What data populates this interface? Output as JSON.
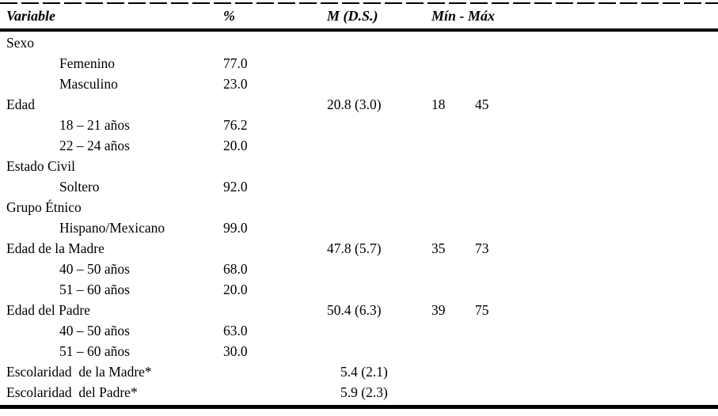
{
  "table": {
    "columns": {
      "variable": "Variable",
      "pct": "%",
      "m": "M (D.S.)",
      "minmax": "Mín - Máx"
    },
    "rows": [
      {
        "label": "Sexo",
        "indent": false,
        "pct": "",
        "m": "",
        "min": "",
        "max": ""
      },
      {
        "label": "Femenino",
        "indent": true,
        "pct": "77.0",
        "m": "",
        "min": "",
        "max": ""
      },
      {
        "label": "Masculino",
        "indent": true,
        "pct": "23.0",
        "m": "",
        "min": "",
        "max": ""
      },
      {
        "label": "Edad",
        "indent": false,
        "pct": "",
        "m": "20.8 (3.0)",
        "min": "18",
        "max": "45"
      },
      {
        "label": "18 – 21 años",
        "indent": true,
        "pct": "76.2",
        "m": "",
        "min": "",
        "max": ""
      },
      {
        "label": "22 – 24 años",
        "indent": true,
        "pct": "20.0",
        "m": "",
        "min": "",
        "max": ""
      },
      {
        "label": "Estado Civil",
        "indent": false,
        "pct": "",
        "m": "",
        "min": "",
        "max": ""
      },
      {
        "label": "Soltero",
        "indent": true,
        "pct": "92.0",
        "m": "",
        "min": "",
        "max": ""
      },
      {
        "label": "Grupo Étnico",
        "indent": false,
        "pct": "",
        "m": "",
        "min": "",
        "max": ""
      },
      {
        "label": "Hispano/Mexicano",
        "indent": true,
        "pct": "99.0",
        "m": "",
        "min": "",
        "max": ""
      },
      {
        "label": "Edad de la Madre",
        "indent": false,
        "pct": "",
        "m": "47.8 (5.7)",
        "min": "35",
        "max": "73"
      },
      {
        "label": "40 – 50 años",
        "indent": true,
        "pct": "68.0",
        "m": "",
        "min": "",
        "max": ""
      },
      {
        "label": "51 – 60 años",
        "indent": true,
        "pct": "20.0",
        "m": "",
        "min": "",
        "max": ""
      },
      {
        "label": "Edad del Padre",
        "indent": false,
        "pct": "",
        "m": "50.4 (6.3)",
        "min": "39",
        "max": "75"
      },
      {
        "label": "40 – 50 años",
        "indent": true,
        "pct": "63.0",
        "m": "",
        "min": "",
        "max": ""
      },
      {
        "label": "51 – 60 años",
        "indent": true,
        "pct": "30.0",
        "m": "",
        "min": "",
        "max": ""
      },
      {
        "label": "Escolaridad  de la Madre*",
        "indent": false,
        "pct": "",
        "m": "5.4 (2.1)",
        "min": "",
        "max": ""
      },
      {
        "label": "Escolaridad  del Padre*",
        "indent": false,
        "pct": "",
        "m": "5.9 (2.3)",
        "min": "",
        "max": ""
      }
    ]
  },
  "rules": {
    "color": "#000000"
  }
}
